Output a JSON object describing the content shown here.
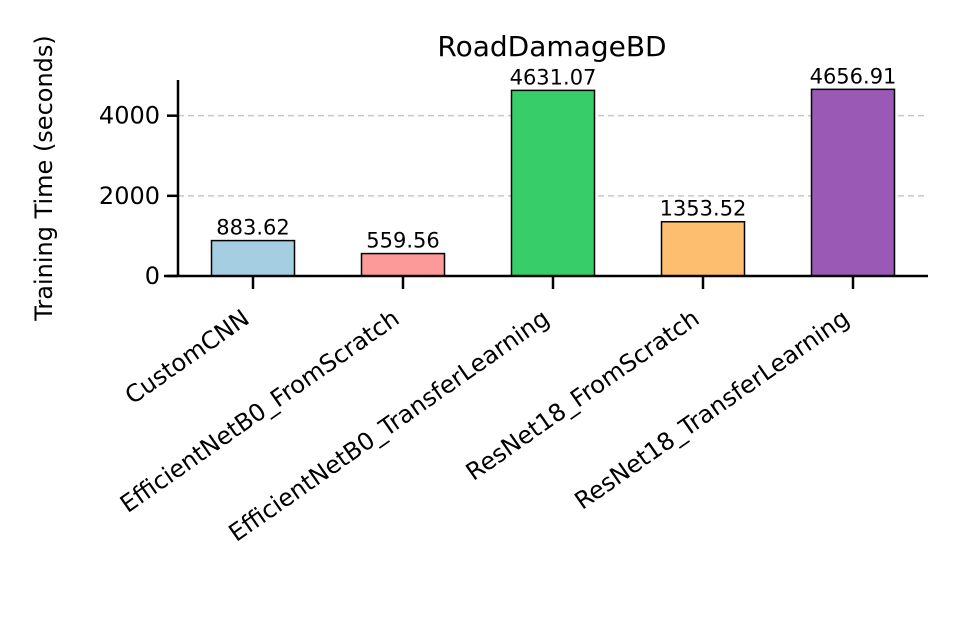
{
  "chart_data": {
    "type": "bar",
    "title": "RoadDamageBD",
    "xlabel": "",
    "ylabel": "Training Time (seconds)",
    "categories": [
      "CustomCNN",
      "EfficientNetB0_FromScratch",
      "EfficientNetB0_TransferLearning",
      "ResNet18_FromScratch",
      "ResNet18_TransferLearning"
    ],
    "values": [
      883.62,
      559.56,
      4631.07,
      1353.52,
      4656.91
    ],
    "value_labels": [
      "883.62",
      "559.56",
      "4631.07",
      "1353.52",
      "4656.91"
    ],
    "colors": [
      "#a6cee3",
      "#fb9a99",
      "#37cd69",
      "#fdbf6f",
      "#9b59b6"
    ],
    "ylim": [
      0,
      4890
    ],
    "yticks": [
      0,
      2000,
      4000
    ],
    "ytick_labels": [
      "0",
      "2000",
      "4000"
    ],
    "grid": "y-dashed",
    "legend": "none"
  }
}
